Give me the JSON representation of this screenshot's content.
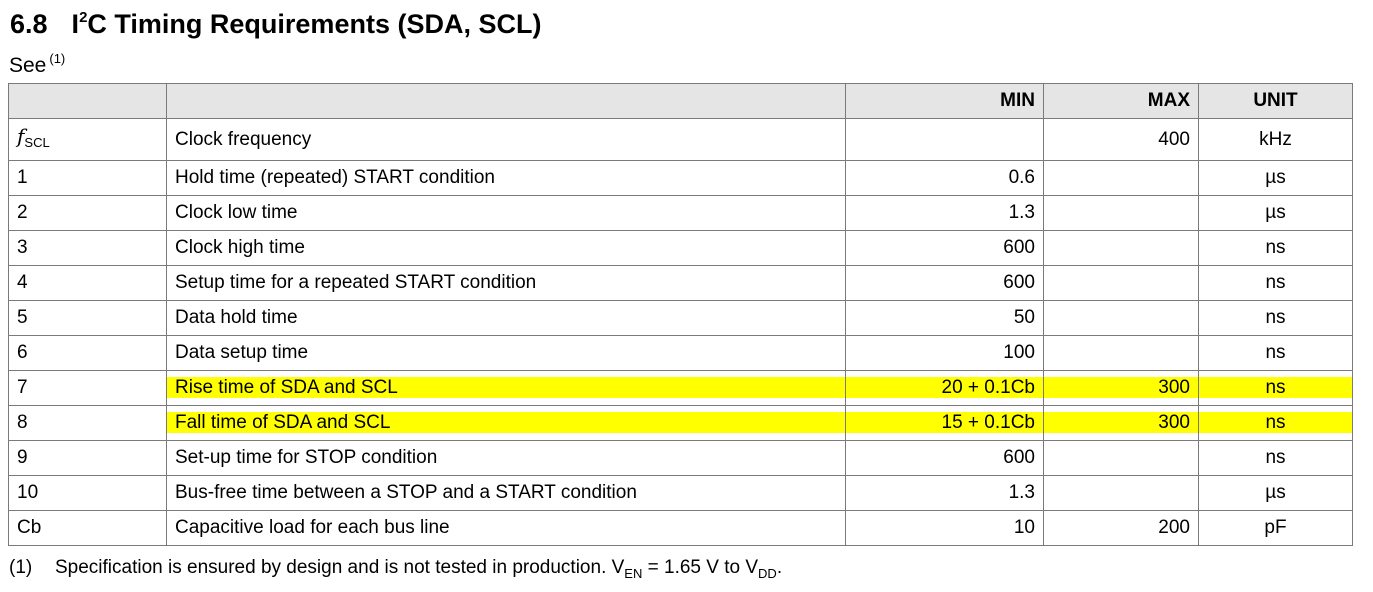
{
  "section": {
    "number": "6.8",
    "title_prefix": "I",
    "title_sup": "2",
    "title_rest": "C Timing Requirements (SDA, SCL)"
  },
  "see_line": {
    "text": "See",
    "ref": "(1)"
  },
  "table": {
    "headers": {
      "symbol": "",
      "description": "",
      "min": "MIN",
      "max": "MAX",
      "unit": "UNIT"
    },
    "fscl": {
      "symbol_main": "f",
      "symbol_sub": "SCL",
      "description": "Clock frequency",
      "min": "",
      "max": "400",
      "unit": "kHz"
    },
    "rows": [
      {
        "symbol": "1",
        "description": "Hold time (repeated) START condition",
        "min": "0.6",
        "max": "",
        "unit": "µs"
      },
      {
        "symbol": "2",
        "description": "Clock low time",
        "min": "1.3",
        "max": "",
        "unit": "µs"
      },
      {
        "symbol": "3",
        "description": "Clock high time",
        "min": "600",
        "max": "",
        "unit": "ns"
      },
      {
        "symbol": "4",
        "description": "Setup time for a repeated START condition",
        "min": "600",
        "max": "",
        "unit": "ns"
      },
      {
        "symbol": "5",
        "description": "Data hold time",
        "min": "50",
        "max": "",
        "unit": "ns"
      },
      {
        "symbol": "6",
        "description": "Data setup time",
        "min": "100",
        "max": "",
        "unit": "ns"
      },
      {
        "symbol": "7",
        "description": "Rise time of SDA and SCL",
        "min": "20 + 0.1Cb",
        "max": "300",
        "unit": "ns"
      },
      {
        "symbol": "8",
        "description": "Fall time of SDA and SCL",
        "min": "15 + 0.1Cb",
        "max": "300",
        "unit": "ns"
      },
      {
        "symbol": "9",
        "description": "Set-up time for STOP condition",
        "min": "600",
        "max": "",
        "unit": "ns"
      },
      {
        "symbol": "10",
        "description": "Bus-free time between a STOP and a START condition",
        "min": "1.3",
        "max": "",
        "unit": "µs"
      },
      {
        "symbol": "Cb",
        "description": "Capacitive load for each bus line",
        "min": "10",
        "max": "200",
        "unit": "pF"
      }
    ],
    "highlight_color": "#ffff00",
    "header_bg": "#e5e5e5"
  },
  "footnote": {
    "number": "(1)",
    "text_a": "Specification is ensured by design and is not tested in production. V",
    "sub_en": "EN",
    "text_b": " = 1.65 V to V",
    "sub_dd": "DD",
    "text_c": "."
  }
}
